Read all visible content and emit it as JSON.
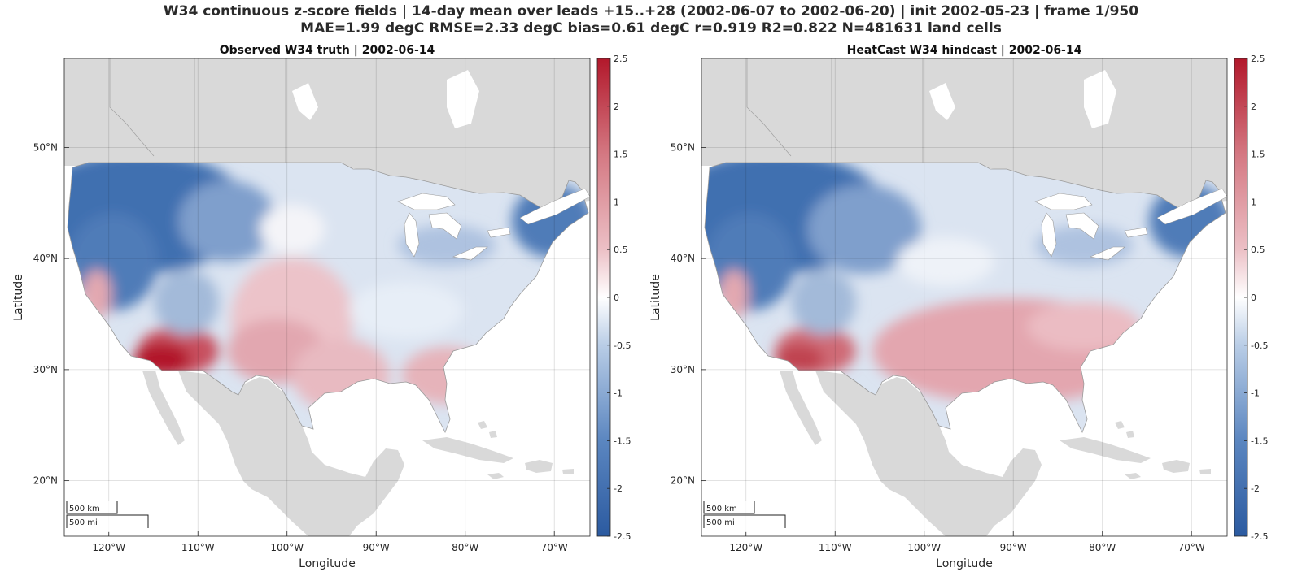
{
  "figure": {
    "title_line1": "W34 continuous z-score fields | 14-day mean over leads +15..+28 (2002-06-07 to 2002-06-20) | init 2002-05-23 | frame 1/950",
    "title_line2": "MAE=1.99 degC  RMSE=2.33 degC  bias=0.61 degC  r=0.919  R2=0.822  N=481631 land cells"
  },
  "panels": [
    {
      "title": "Observed W34 truth | 2002-06-14",
      "xlabel": "Longitude",
      "ylabel": "Latitude",
      "scale_km": "500 km",
      "scale_mi": "500 mi"
    },
    {
      "title": "HeatCast W34 hindcast | 2002-06-14",
      "xlabel": "Longitude",
      "ylabel": "Latitude",
      "scale_km": "500 km",
      "scale_mi": "500 mi"
    }
  ],
  "map": {
    "lon_range": [
      -125,
      -66
    ],
    "lat_range": [
      15,
      58
    ],
    "lon_ticks": [
      "120°W",
      "110°W",
      "100°W",
      "90°W",
      "80°W",
      "70°W"
    ],
    "lon_tick_values": [
      -120,
      -110,
      -100,
      -90,
      -80,
      -70
    ],
    "lat_ticks": [
      "20°N",
      "30°N",
      "40°N",
      "50°N"
    ],
    "lat_tick_values": [
      20,
      30,
      40,
      50
    ],
    "grid": true,
    "land_color": "#d9d9d9",
    "water_color": "#ffffff"
  },
  "colorbar": {
    "colormap": "diverging blue-white-red",
    "low_color": "#2b5aa0",
    "mid_color": "#ffffff",
    "high_color": "#b2182b",
    "range": [
      -2.5,
      2.5
    ],
    "ticks": [
      "2.5",
      "2",
      "1.5",
      "1",
      "0.5",
      "0",
      "-0.5",
      "-1",
      "-1.5",
      "-2",
      "-2.5"
    ],
    "tick_values": [
      2.5,
      2,
      1.5,
      1,
      0.5,
      0,
      -0.5,
      -1,
      -1.5,
      -2,
      -2.5
    ]
  }
}
